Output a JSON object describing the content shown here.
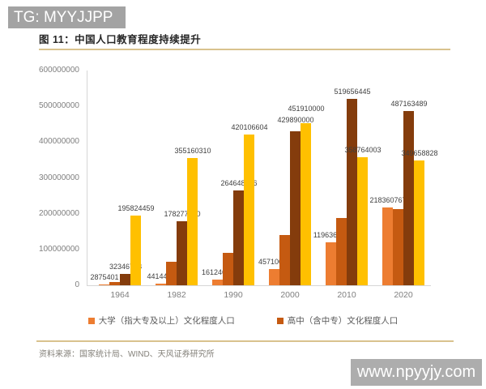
{
  "watermark_top": "TG: MYYJJPP",
  "watermark_bottom": "www.npyyjy.com",
  "figure_title": "图 11：中国人口教育程度持续提升",
  "source_note": "资料来源：国家统计局、WIND、天风证券研究所",
  "chart_data": {
    "type": "bar",
    "title": "图 11：中国人口教育程度持续提升",
    "categories": [
      "1964",
      "1982",
      "1990",
      "2000",
      "2010",
      "2020"
    ],
    "y_axis": {
      "min": 0,
      "max": 600000000,
      "tick_labels": [
        "0",
        "100000000",
        "200000000",
        "300000000",
        "400000000",
        "500000000",
        "600000000"
      ],
      "gridlines": false
    },
    "legend_position": "bottom",
    "series": [
      {
        "name": "大学（指大专及以上）文化程度人口",
        "color": "#ED7D31",
        "in_legend": true,
        "values": [
          2875401,
          4414495,
          16124678,
          45710000,
          119636790,
          218360767
        ],
        "labels": [
          "2875401",
          "4414495",
          "16124678",
          "45710000",
          "119636790",
          "218360767"
        ]
      },
      {
        "name": "高中（含中专）文化程度人口",
        "color": "#C55A11",
        "in_legend": true,
        "values_estimated": true,
        "values": [
          9000000,
          66000000,
          91000000,
          141000000,
          188000000,
          213000000
        ],
        "labels": null
      },
      {
        "name": "",
        "color": "#843C0C",
        "in_legend": false,
        "values": [
          32346788,
          178277140,
          264648676,
          429890000,
          519656445,
          487163489
        ],
        "labels": [
          "32346788",
          "178277140",
          "264648676",
          "429890000",
          "519656445",
          "487163489"
        ]
      },
      {
        "name": "",
        "color": "#FFC000",
        "in_legend": false,
        "values": [
          195824459,
          355160310,
          420106604,
          451910000,
          358764003,
          349658828
        ],
        "labels": [
          "195824459",
          "355160310",
          "420106604",
          "451910000",
          "358764003",
          "349658828"
        ]
      }
    ]
  }
}
